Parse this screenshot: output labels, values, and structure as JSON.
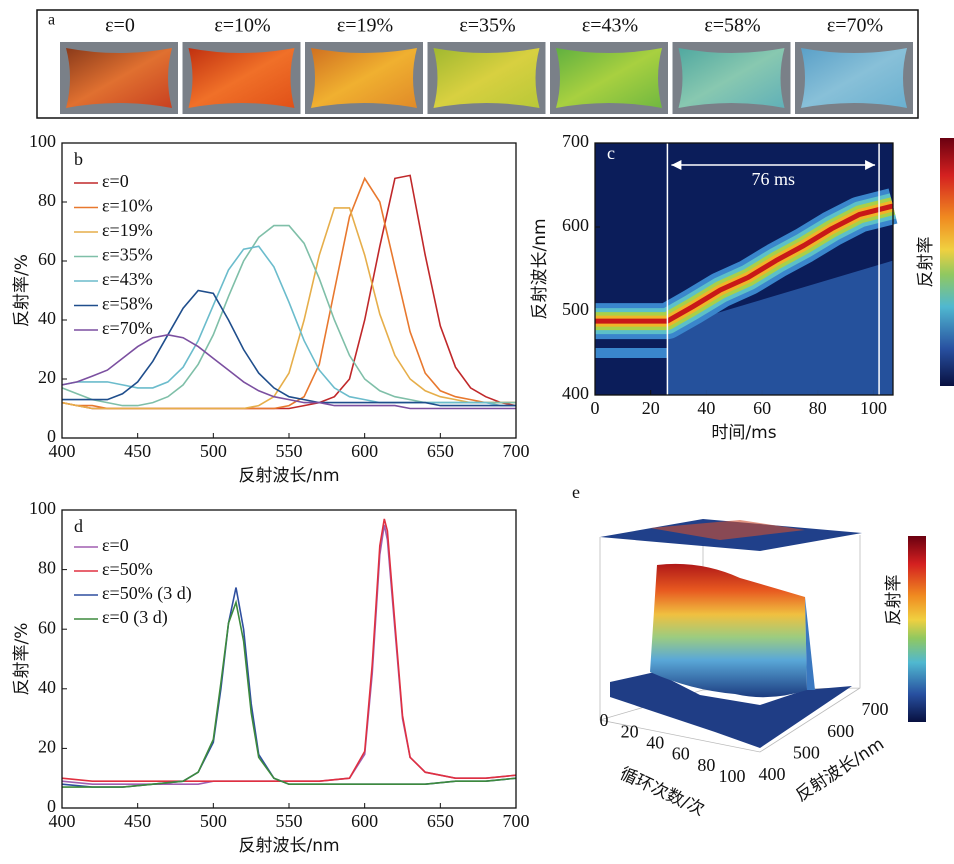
{
  "strip": {
    "panel": "a",
    "items": [
      "ε=0",
      "ε=10%",
      "ε=19%",
      "ε=35%",
      "ε=43%",
      "ε=58%",
      "ε=70%"
    ]
  },
  "chart_data": [
    {
      "type": "line",
      "panel": "b",
      "xlabel": "反射波长/nm",
      "ylabel": "反射率/%",
      "xlim": [
        400,
        700
      ],
      "ylim": [
        0,
        100
      ],
      "xticks": [
        400,
        450,
        500,
        550,
        600,
        650,
        700
      ],
      "yticks": [
        0,
        20,
        40,
        60,
        80,
        100
      ],
      "x": [
        400,
        410,
        420,
        430,
        440,
        450,
        460,
        470,
        480,
        490,
        500,
        510,
        520,
        530,
        540,
        550,
        560,
        570,
        580,
        590,
        600,
        610,
        620,
        630,
        640,
        650,
        660,
        670,
        680,
        690,
        700
      ],
      "series": [
        {
          "name": "ε=0",
          "color": "#c0282a",
          "values": [
            12,
            11,
            10,
            10,
            10,
            10,
            10,
            10,
            10,
            10,
            10,
            10,
            10,
            10,
            10,
            10,
            11,
            12,
            14,
            20,
            40,
            65,
            88,
            89,
            62,
            38,
            24,
            17,
            14,
            12,
            11
          ]
        },
        {
          "name": "ε=10%",
          "color": "#e8782e",
          "values": [
            12,
            11,
            11,
            10,
            10,
            10,
            10,
            10,
            10,
            10,
            10,
            10,
            10,
            10,
            10,
            11,
            14,
            25,
            50,
            75,
            88,
            80,
            58,
            36,
            22,
            16,
            14,
            13,
            12,
            12,
            12
          ]
        },
        {
          "name": "ε=19%",
          "color": "#e6ae4a",
          "values": [
            12,
            11,
            10,
            10,
            10,
            10,
            10,
            10,
            10,
            10,
            10,
            10,
            10,
            11,
            14,
            22,
            40,
            62,
            78,
            78,
            62,
            42,
            28,
            20,
            16,
            14,
            13,
            12,
            12,
            12,
            12
          ]
        },
        {
          "name": "ε=35%",
          "color": "#7fbfa8",
          "values": [
            17,
            15,
            13,
            12,
            11,
            11,
            12,
            14,
            18,
            25,
            35,
            48,
            60,
            68,
            72,
            72,
            66,
            54,
            40,
            28,
            20,
            16,
            14,
            13,
            12,
            12,
            12,
            12,
            12,
            12,
            12
          ]
        },
        {
          "name": "ε=43%",
          "color": "#6bbccc",
          "values": [
            18,
            19,
            19,
            19,
            18,
            17,
            17,
            19,
            24,
            33,
            45,
            57,
            64,
            65,
            58,
            46,
            33,
            23,
            17,
            14,
            13,
            12,
            12,
            12,
            12,
            12,
            12,
            12,
            12,
            11,
            11
          ]
        },
        {
          "name": "ε=58%",
          "color": "#1f4e8c",
          "values": [
            13,
            13,
            13,
            13,
            15,
            19,
            26,
            35,
            44,
            50,
            49,
            40,
            30,
            22,
            17,
            14,
            13,
            12,
            12,
            12,
            12,
            12,
            12,
            12,
            12,
            11,
            11,
            11,
            11,
            11,
            11
          ]
        },
        {
          "name": "ε=70%",
          "color": "#7b4fa0",
          "values": [
            18,
            19,
            21,
            23,
            27,
            31,
            34,
            35,
            34,
            31,
            27,
            23,
            19,
            16,
            14,
            13,
            12,
            12,
            11,
            11,
            11,
            11,
            11,
            10,
            10,
            10,
            10,
            10,
            10,
            10,
            10
          ]
        }
      ]
    },
    {
      "type": "heatmap",
      "panel": "c",
      "xlabel": "时间/ms",
      "ylabel": "反射波长/nm",
      "colorbar_label": "反射率",
      "annotation": "76 ms",
      "xlim": [
        0,
        107
      ],
      "ylim": [
        400,
        700
      ],
      "xticks": [
        0,
        20,
        40,
        60,
        80,
        100
      ],
      "yticks": [
        400,
        500,
        600,
        700
      ],
      "markers": [
        26,
        102
      ],
      "peak_x": [
        0,
        26,
        35,
        45,
        55,
        65,
        75,
        85,
        95,
        107
      ],
      "peak_y": [
        488,
        488,
        505,
        525,
        540,
        560,
        578,
        598,
        615,
        625
      ]
    },
    {
      "type": "line",
      "panel": "d",
      "xlabel": "反射波长/nm",
      "ylabel": "反射率/%",
      "xlim": [
        400,
        700
      ],
      "ylim": [
        0,
        100
      ],
      "xticks": [
        400,
        450,
        500,
        550,
        600,
        650,
        700
      ],
      "yticks": [
        0,
        20,
        40,
        60,
        80,
        100
      ],
      "x": [
        400,
        420,
        440,
        460,
        480,
        490,
        500,
        505,
        510,
        515,
        520,
        525,
        530,
        540,
        550,
        570,
        590,
        600,
        605,
        610,
        613,
        615,
        620,
        625,
        630,
        640,
        660,
        680,
        700
      ],
      "series": [
        {
          "name": "ε=0",
          "color": "#a05fb0",
          "values": [
            9,
            8,
            8,
            8,
            8,
            8,
            9,
            9,
            9,
            9,
            9,
            9,
            9,
            9,
            9,
            9,
            10,
            18,
            45,
            85,
            95,
            90,
            60,
            30,
            17,
            12,
            10,
            10,
            11
          ]
        },
        {
          "name": "ε=50%",
          "color": "#e03040",
          "values": [
            10,
            9,
            9,
            9,
            9,
            9,
            9,
            9,
            9,
            9,
            9,
            9,
            9,
            9,
            9,
            9,
            10,
            19,
            48,
            88,
            97,
            93,
            62,
            31,
            17,
            12,
            10,
            10,
            11
          ]
        },
        {
          "name": "ε=50% (3 d)",
          "color": "#2f4f9f",
          "values": [
            8,
            7,
            7,
            8,
            9,
            12,
            22,
            40,
            62,
            74,
            60,
            35,
            18,
            10,
            8,
            8,
            8,
            8,
            8,
            8,
            8,
            8,
            8,
            8,
            8,
            8,
            9,
            9,
            10
          ]
        },
        {
          "name": "ε=0 (3 d)",
          "color": "#3d8a3d",
          "values": [
            7,
            7,
            7,
            8,
            9,
            12,
            23,
            42,
            62,
            69,
            56,
            32,
            17,
            10,
            8,
            8,
            8,
            8,
            8,
            8,
            8,
            8,
            8,
            8,
            8,
            8,
            9,
            9,
            10
          ]
        }
      ]
    },
    {
      "type": "surface3d",
      "panel": "e",
      "xlabel": "循环次数/次",
      "ylabel": "反射波长/nm",
      "colorbar_label": "反射率",
      "xlim": [
        0,
        100
      ],
      "ylim": [
        400,
        700
      ],
      "xticks": [
        0,
        20,
        40,
        60,
        80,
        100
      ],
      "yticks": [
        400,
        500,
        600,
        700
      ]
    }
  ]
}
